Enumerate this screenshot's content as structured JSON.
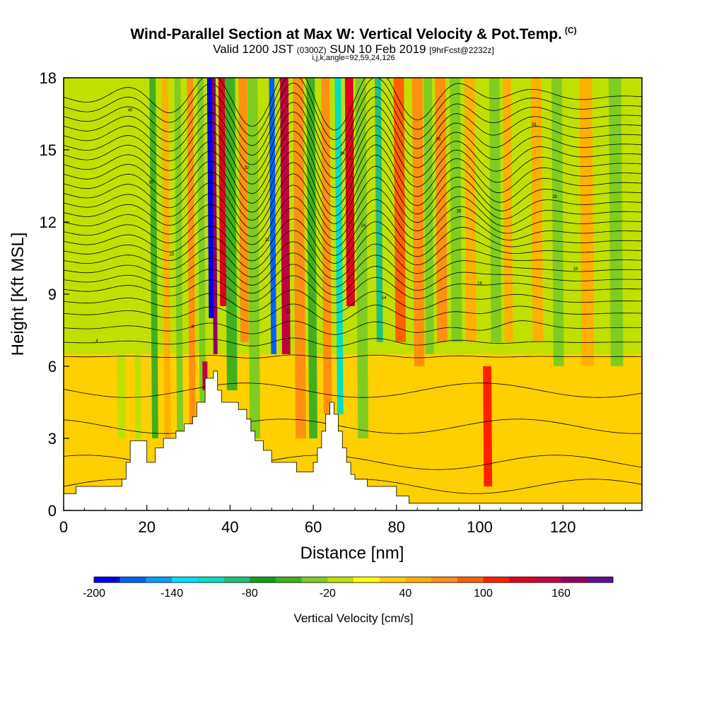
{
  "header": {
    "title": "Wind-Parallel Section at Max W: Vertical Velocity & Pot.Temp.",
    "copyright": "(C)",
    "valid_prefix": "Valid 1200 JST",
    "valid_utc": "(0300Z)",
    "valid_date": "SUN 10 Feb 2019",
    "forecast": "[9hrFcst@2232z]",
    "grid_info": "i,j,k,angle=92,59,24,126"
  },
  "chart_data": {
    "type": "heatmap",
    "title": "Wind-Parallel Section at Max W: Vertical Velocity & Pot.Temp.",
    "xlabel": "Distance [nm]",
    "ylabel": "Height [Kft MSL]",
    "xlim": [
      0,
      139
    ],
    "ylim": [
      0,
      18
    ],
    "xticks": [
      0,
      20,
      40,
      60,
      80,
      100,
      120
    ],
    "yticks": [
      0,
      3,
      6,
      9,
      12,
      15,
      18
    ],
    "grid": false,
    "colorbar": {
      "title": "Vertical Velocity [cm/s]",
      "min": -200,
      "max": 200,
      "step": 20,
      "tick_values": [
        -200,
        -140,
        -80,
        -20,
        40,
        100,
        160
      ],
      "colors": [
        "#0000ee",
        "#0060ff",
        "#00a0ff",
        "#00e0ff",
        "#00e0c0",
        "#20c080",
        "#10a020",
        "#40b020",
        "#80cc20",
        "#c0e000",
        "#ffff00",
        "#ffd000",
        "#ffb000",
        "#ff9010",
        "#ff6000",
        "#ff2000",
        "#e00020",
        "#c00040",
        "#900060",
        "#601090"
      ]
    },
    "velocity_bands": [
      {
        "x": 36.5,
        "w": 160,
        "width_nm": 1.0,
        "top": 18,
        "bottom": 6.5
      },
      {
        "x": 35.5,
        "w": -200,
        "width_nm": 1.2,
        "top": 18,
        "bottom": 8
      },
      {
        "x": 38.5,
        "w": 130,
        "width_nm": 1.8,
        "top": 18,
        "bottom": 8.5
      },
      {
        "x": 40.5,
        "w": -60,
        "width_nm": 2.5,
        "top": 18,
        "bottom": 5
      },
      {
        "x": 43.5,
        "w": 60,
        "width_nm": 2.0,
        "top": 18,
        "bottom": 7
      },
      {
        "x": 46,
        "w": -40,
        "width_nm": 2.5,
        "top": 18,
        "bottom": 3
      },
      {
        "x": 50.5,
        "w": -180,
        "width_nm": 1.3,
        "top": 18,
        "bottom": 6.5
      },
      {
        "x": 53.5,
        "w": 150,
        "width_nm": 2.0,
        "top": 18,
        "bottom": 6.5
      },
      {
        "x": 57,
        "w": 60,
        "width_nm": 2.5,
        "top": 18,
        "bottom": 3
      },
      {
        "x": 60,
        "w": -60,
        "width_nm": 2.0,
        "top": 18,
        "bottom": 3
      },
      {
        "x": 63.5,
        "w": 60,
        "width_nm": 2.0,
        "top": 18,
        "bottom": 4
      },
      {
        "x": 66.5,
        "w": -120,
        "width_nm": 1.5,
        "top": 18,
        "bottom": 4
      },
      {
        "x": 69,
        "w": 120,
        "width_nm": 2.0,
        "top": 18,
        "bottom": 8.5
      },
      {
        "x": 72,
        "w": -40,
        "width_nm": 2.5,
        "top": 18,
        "bottom": 3
      },
      {
        "x": 76,
        "w": -100,
        "width_nm": 1.5,
        "top": 18,
        "bottom": 7
      },
      {
        "x": 81,
        "w": 80,
        "width_nm": 2.5,
        "top": 18,
        "bottom": 7
      },
      {
        "x": 85.5,
        "w": 60,
        "width_nm": 2.5,
        "top": 18,
        "bottom": 6
      },
      {
        "x": 88,
        "w": -40,
        "width_nm": 2.0,
        "top": 18,
        "bottom": 6.5
      },
      {
        "x": 91,
        "w": 60,
        "width_nm": 2.5,
        "top": 18,
        "bottom": 7
      },
      {
        "x": 94.5,
        "w": -40,
        "width_nm": 2.5,
        "top": 18,
        "bottom": 7
      },
      {
        "x": 98,
        "w": 40,
        "width_nm": 2.5,
        "top": 18,
        "bottom": 7
      },
      {
        "x": 102,
        "w": 110,
        "width_nm": 2.0,
        "top": 6,
        "bottom": 1
      },
      {
        "x": 104,
        "w": -40,
        "width_nm": 2.5,
        "top": 18,
        "bottom": 7
      },
      {
        "x": 107,
        "w": 40,
        "width_nm": 2.0,
        "top": 18,
        "bottom": 7
      },
      {
        "x": 110,
        "w": -20,
        "width_nm": 2.5,
        "top": 18,
        "bottom": 7
      },
      {
        "x": 114,
        "w": 40,
        "width_nm": 2.5,
        "top": 18,
        "bottom": 7
      },
      {
        "x": 119,
        "w": -40,
        "width_nm": 2.5,
        "top": 18,
        "bottom": 6
      },
      {
        "x": 126,
        "w": 40,
        "width_nm": 3.0,
        "top": 18,
        "bottom": 6
      },
      {
        "x": 133,
        "w": -40,
        "width_nm": 3.0,
        "top": 18,
        "bottom": 6
      },
      {
        "x": 22,
        "w": -60,
        "width_nm": 1.5,
        "top": 18,
        "bottom": 3
      },
      {
        "x": 25,
        "w": 40,
        "width_nm": 1.5,
        "top": 18,
        "bottom": 3
      },
      {
        "x": 28,
        "w": -40,
        "width_nm": 1.5,
        "top": 18,
        "bottom": 3
      },
      {
        "x": 31,
        "w": 60,
        "width_nm": 1.5,
        "top": 18,
        "bottom": 3
      },
      {
        "x": 33.5,
        "w": -40,
        "width_nm": 1.5,
        "top": 18,
        "bottom": 3
      },
      {
        "x": 34,
        "w": 140,
        "width_nm": 1.2,
        "top": 6.2,
        "bottom": 5
      },
      {
        "x": 18,
        "w": -20,
        "width_nm": 1.5,
        "top": 18,
        "bottom": 1.5
      },
      {
        "x": 14,
        "w": -20,
        "width_nm": 2.0,
        "top": 18,
        "bottom": 3
      }
    ],
    "terrain": [
      [
        0,
        0.7
      ],
      [
        3,
        0.7
      ],
      [
        3,
        1.0
      ],
      [
        14,
        1.0
      ],
      [
        14,
        1.3
      ],
      [
        15,
        1.3
      ],
      [
        15,
        2.0
      ],
      [
        16,
        2.0
      ],
      [
        16,
        2.9
      ],
      [
        20,
        2.9
      ],
      [
        20,
        2.0
      ],
      [
        22,
        2.0
      ],
      [
        22,
        2.6
      ],
      [
        24,
        2.6
      ],
      [
        24,
        3.0
      ],
      [
        27,
        3.0
      ],
      [
        27,
        3.3
      ],
      [
        29,
        3.3
      ],
      [
        29,
        3.6
      ],
      [
        31,
        3.6
      ],
      [
        31,
        3.9
      ],
      [
        32,
        3.9
      ],
      [
        32,
        4.5
      ],
      [
        34,
        4.5
      ],
      [
        34,
        5.5
      ],
      [
        36,
        5.5
      ],
      [
        36,
        5.8
      ],
      [
        37,
        5.8
      ],
      [
        37,
        5.0
      ],
      [
        38,
        5.0
      ],
      [
        38,
        4.5
      ],
      [
        42,
        4.5
      ],
      [
        42,
        4.2
      ],
      [
        44,
        4.2
      ],
      [
        44,
        3.8
      ],
      [
        45,
        3.8
      ],
      [
        45,
        3.3
      ],
      [
        46,
        3.3
      ],
      [
        46,
        2.9
      ],
      [
        48,
        2.9
      ],
      [
        48,
        2.5
      ],
      [
        50,
        2.5
      ],
      [
        50,
        2.0
      ],
      [
        56,
        2.0
      ],
      [
        56,
        1.6
      ],
      [
        60,
        1.6
      ],
      [
        60,
        2.0
      ],
      [
        61,
        2.0
      ],
      [
        61,
        2.6
      ],
      [
        62,
        2.6
      ],
      [
        62,
        3.3
      ],
      [
        63,
        3.3
      ],
      [
        63,
        4.0
      ],
      [
        64,
        4.0
      ],
      [
        64,
        4.5
      ],
      [
        65,
        4.5
      ],
      [
        65,
        4.0
      ],
      [
        66,
        4.0
      ],
      [
        66,
        3.3
      ],
      [
        67,
        3.3
      ],
      [
        67,
        2.6
      ],
      [
        68,
        2.6
      ],
      [
        68,
        2.0
      ],
      [
        69,
        2.0
      ],
      [
        69,
        1.5
      ],
      [
        70,
        1.5
      ],
      [
        70,
        1.3
      ],
      [
        73,
        1.3
      ],
      [
        73,
        1.0
      ],
      [
        80,
        1.0
      ],
      [
        80,
        0.6
      ],
      [
        83,
        0.6
      ],
      [
        83,
        0.3
      ],
      [
        139,
        0.3
      ]
    ],
    "theta_lines": {
      "unit": "potential temperature",
      "count": 30,
      "base_heights_kft": [
        1.0,
        2.0,
        3.5,
        5.0,
        6.4,
        7.0,
        7.6,
        8.2,
        8.7,
        9.2,
        9.6,
        10.0,
        10.4,
        10.8,
        11.2,
        11.6,
        12.0,
        12.4,
        12.8,
        13.2,
        13.6,
        14.0,
        14.4,
        14.8,
        15.2,
        15.6,
        16.0,
        16.4,
        16.8,
        17.2
      ]
    },
    "theta_label_values": [
      "4",
      "8",
      "12",
      "14",
      "16",
      "18",
      "20",
      "22",
      "24",
      "26",
      "28",
      "30",
      "32",
      "34",
      "36",
      "38",
      "40"
    ]
  }
}
